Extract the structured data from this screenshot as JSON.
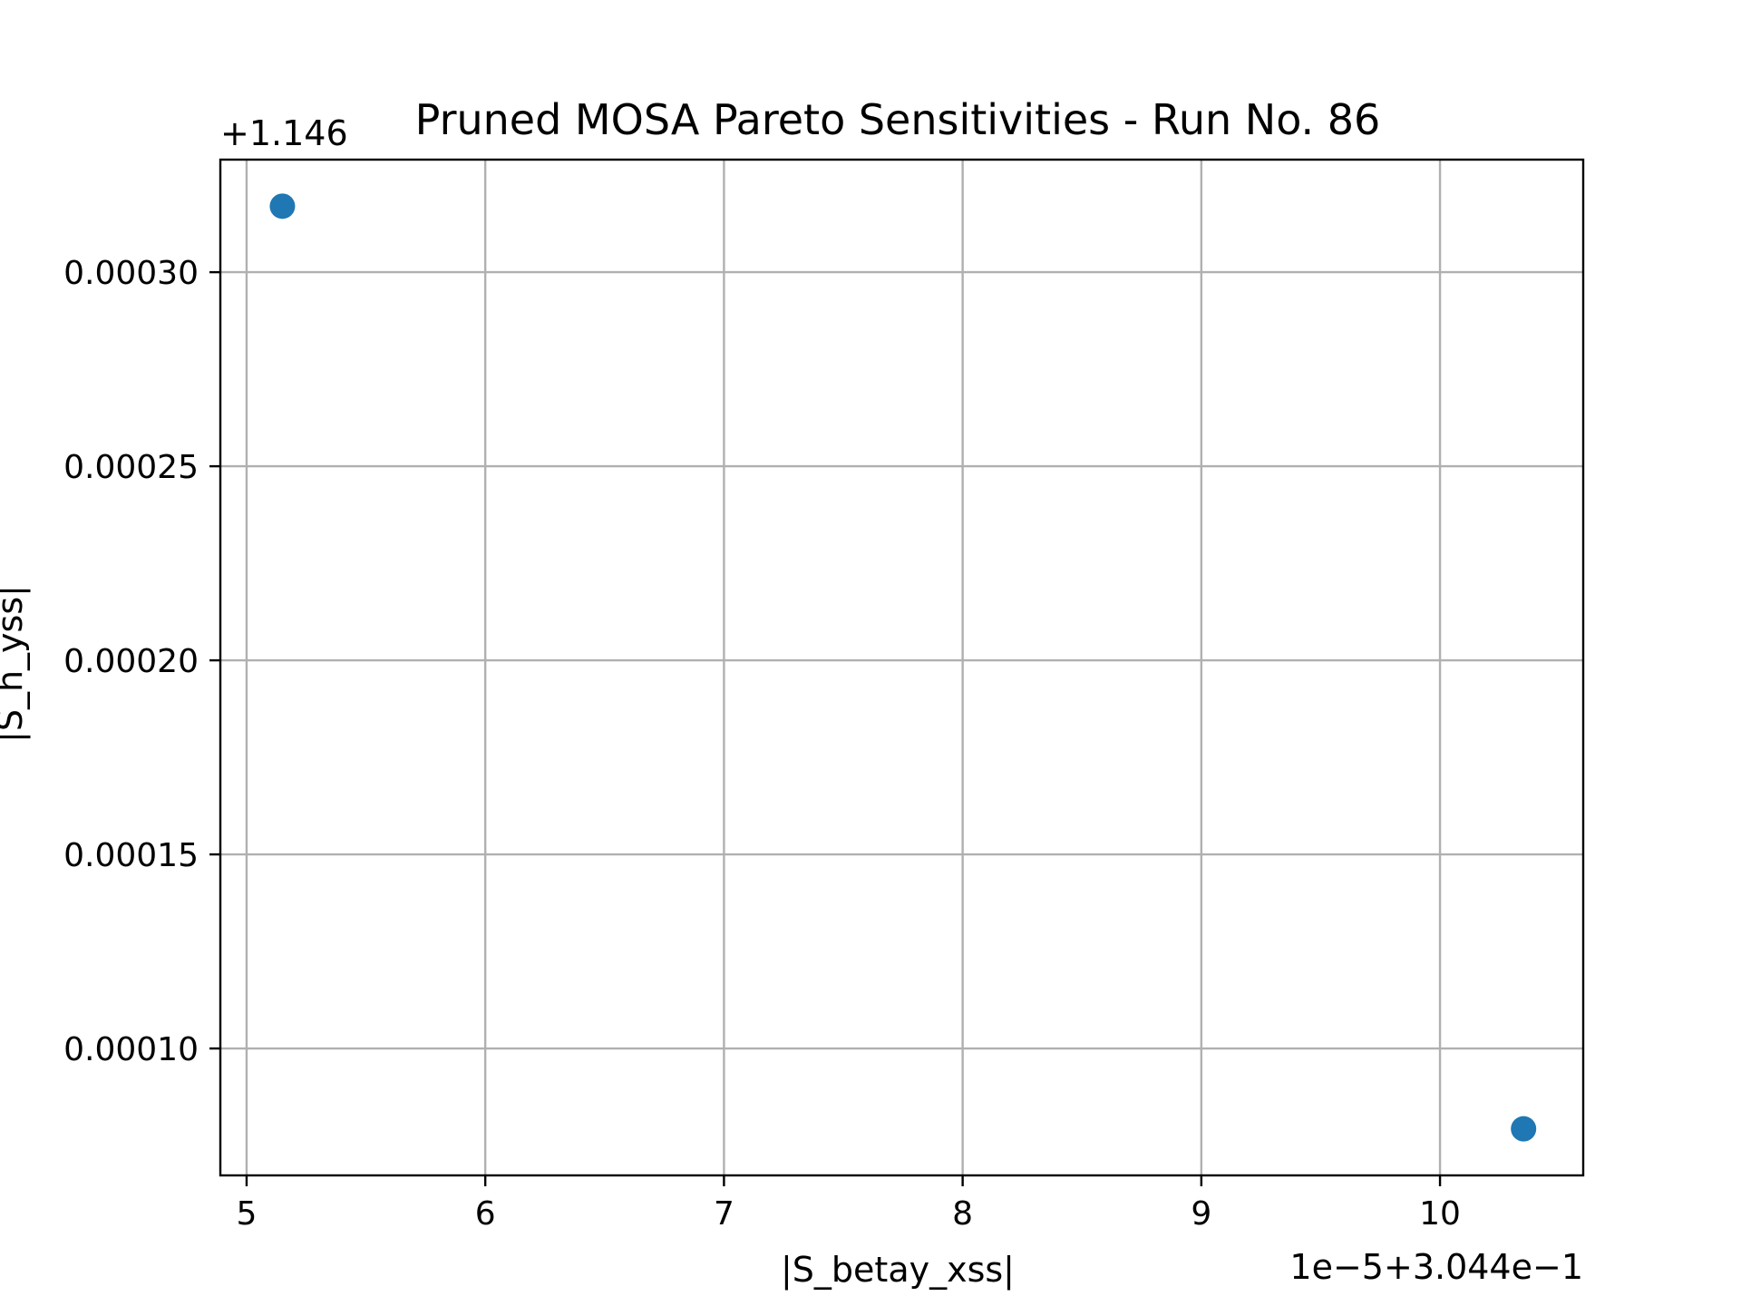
{
  "chart_data": {
    "type": "scatter",
    "title": "Pruned MOSA Pareto Sensitivities - Run No. 86",
    "xlabel": "|S_betay_xss|",
    "ylabel": "|S_h_yss|",
    "x_offset_text": "1e−5+3.044e−1",
    "y_offset_text": "+1.146",
    "x_ticks": [
      5,
      6,
      7,
      8,
      9,
      10
    ],
    "x_tick_labels": [
      "5",
      "6",
      "7",
      "8",
      "9",
      "10"
    ],
    "y_ticks": [
      0.0001,
      0.00015,
      0.0002,
      0.00025,
      0.0003
    ],
    "y_tick_labels": [
      "0.00010",
      "0.00015",
      "0.00020",
      "0.00025",
      "0.00030"
    ],
    "xlim": [
      4.89,
      10.6
    ],
    "ylim": [
      6.73e-05,
      0.000329
    ],
    "grid": true,
    "points": [
      {
        "x": 5.15,
        "y": 0.000317
      },
      {
        "x": 10.35,
        "y": 7.93e-05
      }
    ],
    "point_color": "#1f77b4",
    "grid_color": "#b0b0b0"
  }
}
